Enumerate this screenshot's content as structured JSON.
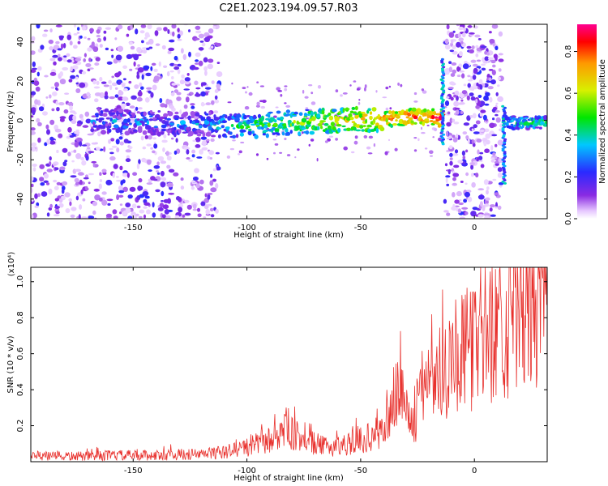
{
  "title": "C2E1.2023.194.09.57.R03",
  "chart_data": [
    {
      "type": "heatmap",
      "xlabel": "Height of straight line (km)",
      "ylabel": "Frequency (Hz)",
      "xlim": [
        -195,
        32
      ],
      "ylim": [
        -50,
        49
      ],
      "xticks": [
        -150,
        -100,
        -50,
        0
      ],
      "yticks": [
        -40,
        -20,
        0,
        20,
        40
      ],
      "colorbar": {
        "label": "Normalized spectral amplitude",
        "range": [
          0.0,
          0.93
        ],
        "ticks": [
          0.0,
          0.2,
          0.4,
          0.6,
          0.8
        ],
        "tick_labels": [
          "0.0",
          "0.2",
          "0.4",
          "0.6",
          "0.8"
        ]
      },
      "features": {
        "noise_regions_km": [
          [
            -195,
            -112
          ],
          [
            -13,
            12
          ]
        ],
        "ridge_center_hz": [
          {
            "x": -165,
            "y": 0
          },
          {
            "x": -120,
            "y": -2
          },
          {
            "x": -100,
            "y": -3
          },
          {
            "x": -80,
            "y": -1
          },
          {
            "x": -60,
            "y": 0
          },
          {
            "x": -40,
            "y": 1
          },
          {
            "x": -20,
            "y": 2
          },
          {
            "x": -15,
            "y": 1
          },
          {
            "x": 15,
            "y": -1
          },
          {
            "x": 32,
            "y": -1
          }
        ],
        "vertical_streaks": [
          {
            "x": -14,
            "y_range": [
              -12,
              32
            ]
          },
          {
            "x": 13,
            "y_range": [
              -32,
              8
            ]
          }
        ]
      }
    },
    {
      "type": "line",
      "xlabel": "Height of straight line (km)",
      "ylabel": "SNR (10 * v/v)",
      "y_multiplier": "(x10⁴)",
      "xlim": [
        -195,
        32
      ],
      "ylim": [
        0,
        1.08
      ],
      "xticks": [
        -150,
        -100,
        -50,
        0
      ],
      "yticks": [
        0.2,
        0.4,
        0.6,
        0.8,
        1.0
      ],
      "color": "#e8302c",
      "series": [
        {
          "x": [
            -195,
            -180,
            -170,
            -160,
            -150,
            -140,
            -130,
            -120,
            -115,
            -110,
            -105,
            -100,
            -95,
            -90,
            -85,
            -82,
            -80,
            -78,
            -75,
            -70,
            -65,
            -60,
            -55,
            -50,
            -45,
            -40,
            -37,
            -35,
            -33,
            -30,
            -28,
            -25,
            -23,
            -20,
            -17,
            -15,
            -12,
            -10,
            -5,
            0,
            5,
            10,
            15,
            20,
            25,
            32
          ],
          "y": [
            0.03,
            0.03,
            0.03,
            0.035,
            0.035,
            0.035,
            0.04,
            0.04,
            0.05,
            0.05,
            0.07,
            0.08,
            0.1,
            0.12,
            0.16,
            0.2,
            0.15,
            0.14,
            0.12,
            0.1,
            0.08,
            0.09,
            0.1,
            0.12,
            0.14,
            0.18,
            0.25,
            0.35,
            0.45,
            0.3,
            0.2,
            0.25,
            0.4,
            0.55,
            0.45,
            0.5,
            0.55,
            0.62,
            0.6,
            0.65,
            0.72,
            0.75,
            0.78,
            0.85,
            0.88,
            0.92
          ]
        }
      ]
    }
  ]
}
